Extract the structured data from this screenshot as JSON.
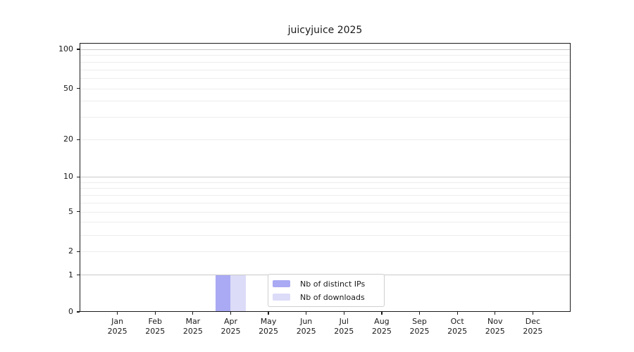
{
  "title": "juicyjuice 2025",
  "chart_data": {
    "type": "bar",
    "title": "juicyjuice 2025",
    "categories": [
      "Jan",
      "Feb",
      "Mar",
      "Apr",
      "May",
      "Jun",
      "Jul",
      "Aug",
      "Sep",
      "Oct",
      "Nov",
      "Dec"
    ],
    "year_label": "2025",
    "series": [
      {
        "name": "Nb of distinct IPs",
        "color": "#a9a9f4",
        "values": [
          0,
          0,
          0,
          1,
          0,
          0,
          0,
          0,
          0,
          0,
          0,
          0
        ]
      },
      {
        "name": "Nb of downloads",
        "color": "#dcdcf8",
        "values": [
          0,
          0,
          0,
          1,
          0,
          0,
          0,
          0,
          0,
          0,
          0,
          0
        ]
      }
    ],
    "yticks": [
      0,
      1,
      2,
      5,
      10,
      20,
      50,
      100
    ],
    "ylim": [
      0,
      111
    ],
    "yscale": "log1p",
    "xlabel": "",
    "ylabel": "",
    "grid": "horizontal",
    "legend_position": "lower center"
  },
  "colors": {
    "distinct_ips_bar": "#a9a9f4",
    "downloads_bar": "#dcdcf8",
    "axis": "#1a1a1a",
    "grid_minor": "#ededed",
    "grid_major": "#c9c9c9"
  }
}
